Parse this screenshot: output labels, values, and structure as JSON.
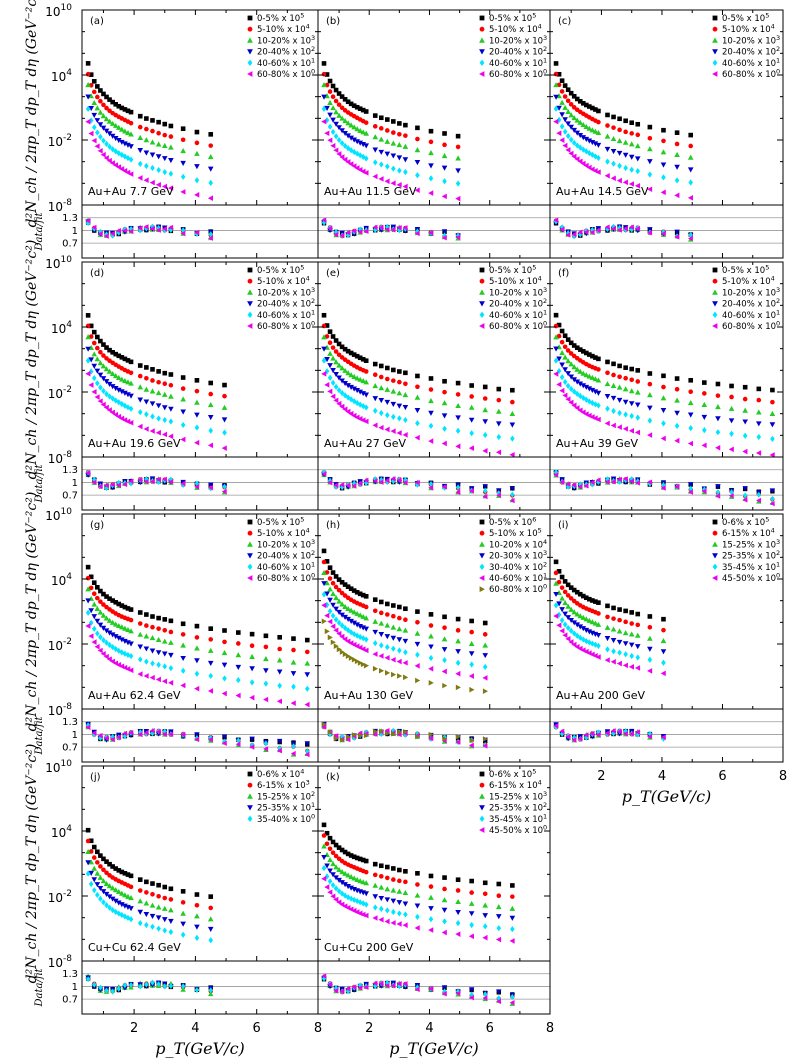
{
  "chart_data": {
    "type": "scatter",
    "axes": {
      "x_tick_labels": [
        "2",
        "4",
        "6",
        "8"
      ],
      "y_tick_labels": [
        "10",
        "10",
        "10",
        "10"
      ],
      "y_tick_exponents": [
        "10",
        "4",
        "-2",
        "-8"
      ],
      "ratio_tick_labels": [
        "1.3",
        "1",
        "0.7"
      ],
      "ylabel": "d²N_ch / 2πp_T dp_T dη (GeV⁻²c²)",
      "ratio_label": "Data/fit",
      "xlabel": "p_T(GeV/c)",
      "xlim": [
        0.3,
        8
      ],
      "ylim_log10": [
        -8,
        10
      ],
      "ratio_lim": [
        0.35,
        1.6
      ],
      "log_y": true,
      "ratio_lines": [
        1.3,
        1.0,
        0.7
      ]
    },
    "colors": {
      "c1": "#000000",
      "c2": "#ff0000",
      "c3": "#22cc22",
      "c4": "#0000cc",
      "c5": "#00e5ff",
      "c6": "#ee00ee",
      "c7": "#807a10"
    },
    "panels": [
      {
        "label": "(a)",
        "system": "Au+Au 7.7 GeV",
        "xmax": 4.8,
        "series": [
          {
            "name": "0-5% x 10",
            "exp": "5",
            "color": "#000000",
            "marker": "square",
            "log10_at_0_5": 5.0,
            "log10_at_8": -2.7
          },
          {
            "name": "5-10% x 10",
            "exp": "4",
            "color": "#ff0000",
            "marker": "circle",
            "log10_at_0_5": 4.0,
            "log10_at_8": -3.7
          },
          {
            "name": "10-20% x 10",
            "exp": "3",
            "color": "#22cc22",
            "marker": "triangle-up",
            "log10_at_0_5": 3.0,
            "log10_at_8": -4.7
          },
          {
            "name": "20-40% x 10",
            "exp": "2",
            "color": "#0000cc",
            "marker": "triangle-down",
            "log10_at_0_5": 1.9,
            "log10_at_8": -5.9
          },
          {
            "name": "40-60% x 10",
            "exp": "1",
            "color": "#00e5ff",
            "marker": "diamond",
            "log10_at_0_5": 0.8,
            "log10_at_8": -7.2
          },
          {
            "name": "60-80% x 10",
            "exp": "0",
            "color": "#ee00ee",
            "marker": "triangle-left",
            "log10_at_0_5": -0.4,
            "log10_at_8": -8.6
          }
        ]
      },
      {
        "label": "(b)",
        "system": "Au+Au 11.5 GeV",
        "xmax": 5.2,
        "series": [
          {
            "name": "0-5% x 10",
            "exp": "5",
            "color": "#000000",
            "marker": "square",
            "log10_at_0_5": 5.0,
            "log10_at_8": -2.6
          },
          {
            "name": "5-10% x 10",
            "exp": "4",
            "color": "#ff0000",
            "marker": "circle",
            "log10_at_0_5": 4.0,
            "log10_at_8": -3.6
          },
          {
            "name": "10-20% x 10",
            "exp": "3",
            "color": "#22cc22",
            "marker": "triangle-up",
            "log10_at_0_5": 3.0,
            "log10_at_8": -4.6
          },
          {
            "name": "20-40% x 10",
            "exp": "2",
            "color": "#0000cc",
            "marker": "triangle-down",
            "log10_at_0_5": 1.9,
            "log10_at_8": -5.8
          },
          {
            "name": "40-60% x 10",
            "exp": "1",
            "color": "#00e5ff",
            "marker": "diamond",
            "log10_at_0_5": 0.8,
            "log10_at_8": -7.0
          },
          {
            "name": "60-80% x 10",
            "exp": "0",
            "color": "#ee00ee",
            "marker": "triangle-left",
            "log10_at_0_5": -0.4,
            "log10_at_8": -8.4
          }
        ]
      },
      {
        "label": "(c)",
        "system": "Au+Au 14.5 GeV",
        "xmax": 5.2,
        "series": [
          {
            "name": "0-5% x 10",
            "exp": "5",
            "color": "#000000",
            "marker": "square",
            "log10_at_0_5": 5.0,
            "log10_at_8": -2.5
          },
          {
            "name": "5-10% x 10",
            "exp": "4",
            "color": "#ff0000",
            "marker": "circle",
            "log10_at_0_5": 4.0,
            "log10_at_8": -3.5
          },
          {
            "name": "10-20% x 10",
            "exp": "3",
            "color": "#22cc22",
            "marker": "triangle-up",
            "log10_at_0_5": 3.0,
            "log10_at_8": -4.5
          },
          {
            "name": "20-40% x 10",
            "exp": "2",
            "color": "#0000cc",
            "marker": "triangle-down",
            "log10_at_0_5": 1.9,
            "log10_at_8": -5.7
          },
          {
            "name": "40-60% x 10",
            "exp": "1",
            "color": "#00e5ff",
            "marker": "diamond",
            "log10_at_0_5": 0.8,
            "log10_at_8": -6.9
          },
          {
            "name": "60-80% x 10",
            "exp": "0",
            "color": "#ee00ee",
            "marker": "triangle-left",
            "log10_at_0_5": -0.4,
            "log10_at_8": -8.3
          }
        ]
      },
      {
        "label": "(d)",
        "system": "Au+Au 19.6 GeV",
        "xmax": 5.2,
        "series": [
          {
            "name": "0-5% x 10",
            "exp": "5",
            "color": "#000000",
            "marker": "square",
            "log10_at_0_5": 5.0,
            "log10_at_8": -2.3
          },
          {
            "name": "5-10% x 10",
            "exp": "4",
            "color": "#ff0000",
            "marker": "circle",
            "log10_at_0_5": 4.0,
            "log10_at_8": -3.3
          },
          {
            "name": "10-20% x 10",
            "exp": "3",
            "color": "#22cc22",
            "marker": "triangle-up",
            "log10_at_0_5": 3.0,
            "log10_at_8": -4.3
          },
          {
            "name": "20-40% x 10",
            "exp": "2",
            "color": "#0000cc",
            "marker": "triangle-down",
            "log10_at_0_5": 1.9,
            "log10_at_8": -5.5
          },
          {
            "name": "40-60% x 10",
            "exp": "1",
            "color": "#00e5ff",
            "marker": "diamond",
            "log10_at_0_5": 0.8,
            "log10_at_8": -6.7
          },
          {
            "name": "60-80% x 10",
            "exp": "0",
            "color": "#ee00ee",
            "marker": "triangle-left",
            "log10_at_0_5": -0.4,
            "log10_at_8": -8.1
          }
        ]
      },
      {
        "label": "(e)",
        "system": "Au+Au 27 GeV",
        "xmax": 6.8,
        "series": [
          {
            "name": "0-5% x 10",
            "exp": "5",
            "color": "#000000",
            "marker": "square",
            "log10_at_0_5": 5.0,
            "log10_at_8": -2.1
          },
          {
            "name": "5-10% x 10",
            "exp": "4",
            "color": "#ff0000",
            "marker": "circle",
            "log10_at_0_5": 4.0,
            "log10_at_8": -3.1
          },
          {
            "name": "10-20% x 10",
            "exp": "3",
            "color": "#22cc22",
            "marker": "triangle-up",
            "log10_at_0_5": 3.0,
            "log10_at_8": -4.1
          },
          {
            "name": "20-40% x 10",
            "exp": "2",
            "color": "#0000cc",
            "marker": "triangle-down",
            "log10_at_0_5": 1.9,
            "log10_at_8": -5.3
          },
          {
            "name": "40-60% x 10",
            "exp": "1",
            "color": "#00e5ff",
            "marker": "diamond",
            "log10_at_0_5": 0.8,
            "log10_at_8": -6.5
          },
          {
            "name": "60-80% x 10",
            "exp": "0",
            "color": "#ee00ee",
            "marker": "triangle-left",
            "log10_at_0_5": -0.4,
            "log10_at_8": -7.9
          }
        ]
      },
      {
        "label": "(f)",
        "system": "Au+Au 39 GeV",
        "xmax": 7.8,
        "series": [
          {
            "name": "0-5% x 10",
            "exp": "5",
            "color": "#000000",
            "marker": "square",
            "log10_at_0_5": 5.0,
            "log10_at_8": -1.8
          },
          {
            "name": "5-10% x 10",
            "exp": "4",
            "color": "#ff0000",
            "marker": "circle",
            "log10_at_0_5": 4.0,
            "log10_at_8": -2.8
          },
          {
            "name": "10-20% x 10",
            "exp": "3",
            "color": "#22cc22",
            "marker": "triangle-up",
            "log10_at_0_5": 3.0,
            "log10_at_8": -3.8
          },
          {
            "name": "20-40% x 10",
            "exp": "2",
            "color": "#0000cc",
            "marker": "triangle-down",
            "log10_at_0_5": 1.9,
            "log10_at_8": -5.0
          },
          {
            "name": "40-60% x 10",
            "exp": "1",
            "color": "#00e5ff",
            "marker": "diamond",
            "log10_at_0_5": 0.8,
            "log10_at_8": -6.2
          },
          {
            "name": "60-80% x 10",
            "exp": "0",
            "color": "#ee00ee",
            "marker": "triangle-left",
            "log10_at_0_5": -0.4,
            "log10_at_8": -7.6
          }
        ]
      },
      {
        "label": "(g)",
        "system": "Au+Au 62.4 GeV",
        "xmax": 7.8,
        "series": [
          {
            "name": "0-5% x 10",
            "exp": "5",
            "color": "#000000",
            "marker": "square",
            "log10_at_0_5": 5.0,
            "log10_at_8": -1.6
          },
          {
            "name": "5-10% x 10",
            "exp": "4",
            "color": "#ff0000",
            "marker": "circle",
            "log10_at_0_5": 4.0,
            "log10_at_8": -2.6
          },
          {
            "name": "10-20% x 10",
            "exp": "3",
            "color": "#22cc22",
            "marker": "triangle-up",
            "log10_at_0_5": 3.0,
            "log10_at_8": -3.6
          },
          {
            "name": "20-40% x 10",
            "exp": "2",
            "color": "#0000cc",
            "marker": "triangle-down",
            "log10_at_0_5": 1.9,
            "log10_at_8": -4.8
          },
          {
            "name": "40-60% x 10",
            "exp": "1",
            "color": "#00e5ff",
            "marker": "diamond",
            "log10_at_0_5": 0.8,
            "log10_at_8": -6.0
          },
          {
            "name": "60-80% x 10",
            "exp": "0",
            "color": "#ee00ee",
            "marker": "triangle-left",
            "log10_at_0_5": -0.4,
            "log10_at_8": -7.4
          }
        ]
      },
      {
        "label": "(h)",
        "system": "Au+Au 130 GeV",
        "xmax": 6.0,
        "series": [
          {
            "name": "0-5% x 10",
            "exp": "6",
            "color": "#000000",
            "marker": "square",
            "log10_at_0_5": 6.5,
            "log10_at_8": -0.6
          },
          {
            "name": "5-10% x 10",
            "exp": "5",
            "color": "#ff0000",
            "marker": "circle",
            "log10_at_0_5": 5.5,
            "log10_at_8": -1.6
          },
          {
            "name": "10-20% x 10",
            "exp": "4",
            "color": "#22cc22",
            "marker": "triangle-up",
            "log10_at_0_5": 4.5,
            "log10_at_8": -2.6
          },
          {
            "name": "20-30% x 10",
            "exp": "3",
            "color": "#0000cc",
            "marker": "triangle-down",
            "log10_at_0_5": 3.5,
            "log10_at_8": -3.6
          },
          {
            "name": "30-40% x 10",
            "exp": "2",
            "color": "#00e5ff",
            "marker": "diamond",
            "log10_at_0_5": 2.5,
            "log10_at_8": -4.6
          },
          {
            "name": "40-60% x 10",
            "exp": "1",
            "color": "#ee00ee",
            "marker": "triangle-left",
            "log10_at_0_5": 1.5,
            "log10_at_8": -5.6
          },
          {
            "name": "60-80% x 10",
            "exp": "0",
            "color": "#807a10",
            "marker": "triangle-right",
            "log10_at_0_5": 0.0,
            "log10_at_8": -6.9
          }
        ]
      },
      {
        "label": "(i)",
        "system": "Au+Au 200 GeV",
        "xmax": 4.3,
        "series": [
          {
            "name": "0-6% x 10",
            "exp": "5",
            "color": "#000000",
            "marker": "square",
            "log10_at_0_5": 5.5,
            "log10_at_8": -0.9
          },
          {
            "name": "6-15% x 10",
            "exp": "4",
            "color": "#ff0000",
            "marker": "circle",
            "log10_at_0_5": 4.5,
            "log10_at_8": -1.9
          },
          {
            "name": "15-25% x 10",
            "exp": "3",
            "color": "#22cc22",
            "marker": "triangle-up",
            "log10_at_0_5": 3.5,
            "log10_at_8": -2.9
          },
          {
            "name": "25-35% x 10",
            "exp": "2",
            "color": "#0000cc",
            "marker": "triangle-down",
            "log10_at_0_5": 2.5,
            "log10_at_8": -3.9
          },
          {
            "name": "35-45% x 10",
            "exp": "1",
            "color": "#00e5ff",
            "marker": "diamond",
            "log10_at_0_5": 1.5,
            "log10_at_8": -4.9
          },
          {
            "name": "45-50% x 10",
            "exp": "0",
            "color": "#ee00ee",
            "marker": "triangle-left",
            "log10_at_0_5": 0.5,
            "log10_at_8": -5.9
          }
        ]
      },
      {
        "label": "(j)",
        "system": "Cu+Cu 62.4 GeV",
        "xmax": 4.8,
        "series": [
          {
            "name": "0-6% x 10",
            "exp": "4",
            "color": "#000000",
            "marker": "square",
            "log10_at_0_5": 4.0,
            "log10_at_8": -3.2
          },
          {
            "name": "6-15% x 10",
            "exp": "3",
            "color": "#ff0000",
            "marker": "circle",
            "log10_at_0_5": 3.0,
            "log10_at_8": -4.2
          },
          {
            "name": "15-25% x 10",
            "exp": "2",
            "color": "#22cc22",
            "marker": "triangle-up",
            "log10_at_0_5": 2.0,
            "log10_at_8": -5.2
          },
          {
            "name": "25-35% x 10",
            "exp": "1",
            "color": "#0000cc",
            "marker": "triangle-down",
            "log10_at_0_5": 1.0,
            "log10_at_8": -6.2
          },
          {
            "name": "35-40% x 10",
            "exp": "0",
            "color": "#00e5ff",
            "marker": "diamond",
            "log10_at_0_5": 0.0,
            "log10_at_8": -7.2
          }
        ]
      },
      {
        "label": "(k)",
        "system": "Cu+Cu 200 GeV",
        "xmax": 6.8,
        "series": [
          {
            "name": "0-6% x 10",
            "exp": "5",
            "color": "#000000",
            "marker": "square",
            "log10_at_0_5": 4.5,
            "log10_at_8": -1.2
          },
          {
            "name": "6-15% x 10",
            "exp": "4",
            "color": "#ff0000",
            "marker": "circle",
            "log10_at_0_5": 3.5,
            "log10_at_8": -2.2
          },
          {
            "name": "15-25% x 10",
            "exp": "3",
            "color": "#22cc22",
            "marker": "triangle-up",
            "log10_at_0_5": 2.5,
            "log10_at_8": -3.2
          },
          {
            "name": "25-35% x 10",
            "exp": "2",
            "color": "#0000cc",
            "marker": "triangle-down",
            "log10_at_0_5": 1.5,
            "log10_at_8": -4.2
          },
          {
            "name": "35-45% x 10",
            "exp": "1",
            "color": "#00e5ff",
            "marker": "diamond",
            "log10_at_0_5": 0.5,
            "log10_at_8": -5.2
          },
          {
            "name": "45-50% x 10",
            "exp": "0",
            "color": "#ee00ee",
            "marker": "triangle-left",
            "log10_at_0_5": -0.5,
            "log10_at_8": -6.2
          }
        ]
      }
    ]
  }
}
